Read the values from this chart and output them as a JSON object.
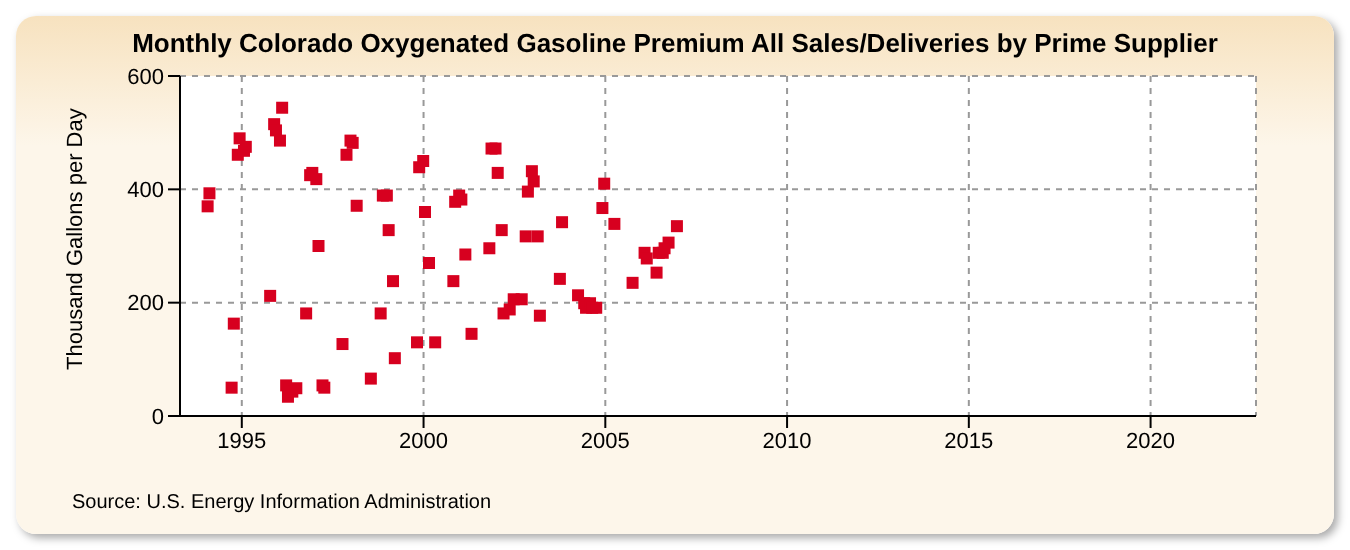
{
  "chart_data": {
    "type": "scatter",
    "title": "Monthly Colorado Oxygenated Gasoline Premium All Sales/Deliveries by Prime Supplier",
    "ylabel": "Thousand Gallons per Day",
    "annotations": [
      "Source: U.S. Energy Information Administration"
    ],
    "xlim": [
      1993.3,
      2022.9
    ],
    "xticks": [
      1995,
      2000,
      2005,
      2010,
      2015,
      2020
    ],
    "ylim": [
      0,
      600
    ],
    "yticks": [
      0,
      200,
      400,
      600
    ],
    "grid": true,
    "marker": "square",
    "legend": false,
    "series": [
      {
        "color": "#d7001f",
        "x": [
          1994.06,
          1994.11,
          1994.72,
          1994.78,
          1994.89,
          1994.94,
          1995.06,
          1995.11,
          1995.78,
          1995.89,
          1995.94,
          1996.05,
          1996.11,
          1996.22,
          1996.27,
          1996.39,
          1996.5,
          1996.77,
          1996.88,
          1996.94,
          1997.05,
          1997.11,
          1997.22,
          1997.27,
          1997.77,
          1997.88,
          1997.99,
          1998.05,
          1998.16,
          1998.55,
          1998.82,
          1998.88,
          1998.99,
          1999.04,
          1999.16,
          1999.21,
          1999.82,
          1999.88,
          1999.99,
          2000.04,
          2000.15,
          2000.32,
          2000.82,
          2000.87,
          2000.98,
          2001.04,
          2001.15,
          2001.32,
          2001.81,
          2001.87,
          2001.98,
          2002.04,
          2002.15,
          2002.2,
          2002.37,
          2002.48,
          2002.7,
          2002.81,
          2002.87,
          2002.98,
          2003.03,
          2003.14,
          2003.2,
          2003.75,
          2003.81,
          2004.25,
          2004.42,
          2004.47,
          2004.58,
          2004.64,
          2004.75,
          2004.92,
          2004.97,
          2005.25,
          2005.75,
          2006.08,
          2006.14,
          2006.41,
          2006.47,
          2006.58,
          2006.63,
          2006.74,
          2006.97
        ],
        "values": [
          370,
          393,
          50,
          163,
          461,
          490,
          468,
          475,
          212,
          515,
          504,
          486,
          544,
          54,
          34,
          43,
          49,
          181,
          425,
          429,
          418,
          300,
          54,
          50,
          127,
          461,
          486,
          482,
          371,
          66,
          181,
          389,
          389,
          328,
          238,
          102,
          130,
          439,
          450,
          360,
          270,
          130,
          238,
          378,
          389,
          382,
          285,
          145,
          296,
          472,
          472,
          429,
          328,
          181,
          188,
          206,
          206,
          317,
          396,
          432,
          414,
          317,
          177,
          242,
          342,
          213,
          199,
          191,
          199,
          191,
          191,
          367,
          410,
          339,
          235,
          288,
          278,
          253,
          288,
          288,
          296,
          306,
          335
        ]
      }
    ]
  }
}
